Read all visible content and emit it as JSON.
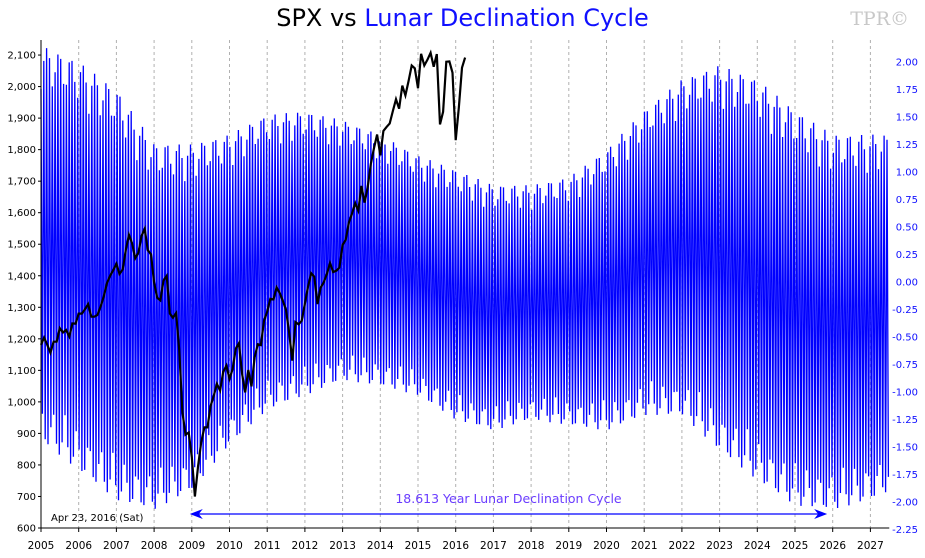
{
  "chart_data": {
    "type": "line",
    "title_part1": "SPX vs",
    "title_part2": "Lunar Declination Cycle",
    "watermark": "TPR©",
    "date_label": "Apr 23, 2016 (Sat)",
    "annotation": "18.613 Year Lunar Declination Cycle",
    "annotation_arrow_range": [
      2009.0,
      2025.8
    ],
    "grid": {
      "vertical_dashed_at_years": true,
      "horizontal": false
    },
    "colors": {
      "spx": "#000000",
      "lunar": "#0000ff",
      "title_accent": "#1010ff",
      "annotation": "#6a3cff",
      "grid": "#b0b0b0"
    },
    "x_axis": {
      "ticks": [
        "2005",
        "2006",
        "2007",
        "2008",
        "2009",
        "2010",
        "2011",
        "2012",
        "2013",
        "2014",
        "2015",
        "2016",
        "2017",
        "2018",
        "2019",
        "2020",
        "2021",
        "2022",
        "2023",
        "2024",
        "2025",
        "2026",
        "2027"
      ],
      "range": [
        2005,
        2027.5
      ]
    },
    "y_left": {
      "range": [
        600,
        2100
      ],
      "ticks": [
        "600",
        "700",
        "800",
        "900",
        "1,000",
        "1,100",
        "1,200",
        "1,300",
        "1,400",
        "1,500",
        "1,600",
        "1,700",
        "1,800",
        "1,900",
        "2,000",
        "2,100"
      ]
    },
    "y_right": {
      "range": [
        -2.25,
        2.0
      ],
      "ticks": [
        "-2.25",
        "-2.00",
        "-1.75",
        "-1.50",
        "-1.25",
        "-1.00",
        "-0.75",
        "-0.50",
        "-0.25",
        "0.00",
        "0.25",
        "0.50",
        "0.75",
        "1.00",
        "1.25",
        "1.50",
        "1.75",
        "2.00"
      ]
    },
    "series": [
      {
        "name": "SPX",
        "axis": "left",
        "start": 2005.0,
        "step_years": 0.08333,
        "values": [
          1181,
          1204,
          1181,
          1156,
          1191,
          1191,
          1234,
          1220,
          1228,
          1207,
          1249,
          1248,
          1280,
          1280,
          1294,
          1310,
          1270,
          1270,
          1276,
          1303,
          1335,
          1377,
          1400,
          1418,
          1438,
          1406,
          1420,
          1482,
          1530,
          1503,
          1455,
          1473,
          1526,
          1549,
          1481,
          1468,
          1378,
          1330,
          1322,
          1385,
          1400,
          1280,
          1267,
          1282,
          1166,
          968,
          896,
          903,
          825,
          700,
          797,
          872,
          919,
          919,
          987,
          1020,
          1057,
          1036,
          1095,
          1115,
          1073,
          1104,
          1169,
          1186,
          1089,
          1030,
          1101,
          1049,
          1141,
          1183,
          1180,
          1257,
          1286,
          1327,
          1325,
          1363,
          1345,
          1320,
          1292,
          1218,
          1131,
          1253,
          1246,
          1257,
          1312,
          1365,
          1408,
          1397,
          1310,
          1362,
          1379,
          1406,
          1440,
          1412,
          1416,
          1426,
          1498,
          1514,
          1569,
          1597,
          1630,
          1606,
          1685,
          1632,
          1681,
          1756,
          1805,
          1848,
          1782,
          1859,
          1872,
          1883,
          1923,
          1960,
          1930,
          2003,
          1972,
          2018,
          2067,
          2058,
          1995,
          2104,
          2067,
          2085,
          2107,
          2063,
          2103,
          1880,
          1920,
          2079,
          2080,
          2044,
          1830,
          1932,
          2060,
          2092
        ]
      },
      {
        "name": "Lunar Declination",
        "axis": "right",
        "period_days": 27.32,
        "envelope_years": [
          2005,
          2006,
          2007,
          2008,
          2009,
          2010,
          2011,
          2012,
          2013,
          2014,
          2015,
          2016,
          2017,
          2018,
          2019,
          2020,
          2021,
          2022,
          2023,
          2024,
          2025,
          2026,
          2027,
          2027.5
        ],
        "upper": [
          2.15,
          2.0,
          1.75,
          1.26,
          1.25,
          1.34,
          1.52,
          1.55,
          1.47,
          1.34,
          1.15,
          1.02,
          0.88,
          0.88,
          0.95,
          1.2,
          1.56,
          1.84,
          1.97,
          1.84,
          1.56,
          1.34,
          1.34,
          1.34
        ],
        "lower": [
          -1.44,
          -1.71,
          -1.98,
          -2.07,
          -1.89,
          -1.48,
          -1.16,
          -1.03,
          -0.89,
          -0.94,
          -1.03,
          -1.25,
          -1.35,
          -1.25,
          -1.3,
          -1.35,
          -1.21,
          -1.21,
          -1.53,
          -1.8,
          -2.03,
          -2.07,
          -1.98,
          -1.9
        ]
      }
    ]
  }
}
